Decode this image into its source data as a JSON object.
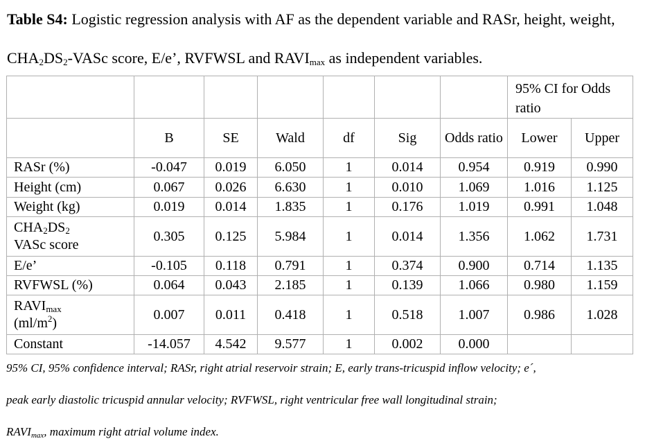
{
  "caption": {
    "lead": "Table S4:",
    "text_1": "Logistic regression analysis with AF as the dependent variable and RASr, height, weight, CHA",
    "sub_a": "2",
    "text_2": "DS",
    "sub_b": "2",
    "text_3": "-VASc score, E/e’, RVFWSL and RAVI",
    "sub_c": "max",
    "text_4": " as independent variables."
  },
  "table": {
    "ci_header": "95% CI for Odds ratio",
    "columns": [
      "B",
      "SE",
      "Wald",
      "df",
      "Sig",
      "Odds ratio",
      "Lower",
      "Upper"
    ],
    "rows": [
      {
        "label": "RASr (%)",
        "values": [
          "-0.047",
          "0.019",
          "6.050",
          "1",
          "0.014",
          "0.954",
          "0.919",
          "0.990"
        ]
      },
      {
        "label": "Height (cm)",
        "values": [
          "0.067",
          "0.026",
          "6.630",
          "1",
          "0.010",
          "1.069",
          "1.016",
          "1.125"
        ]
      },
      {
        "label": "Weight (kg)",
        "values": [
          "0.019",
          "0.014",
          "1.835",
          "1",
          "0.176",
          "1.019",
          "0.991",
          "1.048"
        ]
      },
      {
        "label_parts": {
          "a": "CHA",
          "s1": "2",
          "b": "DS",
          "s2": "2",
          "c": "VASc score"
        },
        "values": [
          "0.305",
          "0.125",
          "5.984",
          "1",
          "0.014",
          "1.356",
          "1.062",
          "1.731"
        ]
      },
      {
        "label": "E/e’",
        "values": [
          "-0.105",
          "0.118",
          "0.791",
          "1",
          "0.374",
          "0.900",
          "0.714",
          "1.135"
        ]
      },
      {
        "label": "RVFWSL (%)",
        "values": [
          "0.064",
          "0.043",
          "2.185",
          "1",
          "0.139",
          "1.066",
          "0.980",
          "1.159"
        ]
      },
      {
        "label_parts": {
          "a": "RAVI",
          "s1": "max",
          "b": "(ml/m",
          "sup": "2",
          "c": ")"
        },
        "values": [
          "0.007",
          "0.011",
          "0.418",
          "1",
          "0.518",
          "1.007",
          "0.986",
          "1.028"
        ]
      },
      {
        "label": "Constant",
        "values": [
          "-14.057",
          "4.542",
          "9.577",
          "1",
          "0.002",
          "0.000",
          "",
          ""
        ]
      }
    ]
  },
  "notes": {
    "line_1": "95% CI, 95% confidence interval; RASr, right atrial reservoir strain; E, early trans-tricuspid inflow velocity; e´,",
    "line_2": "peak early diastolic tricuspid annular velocity; RVFWSL, right ventricular free wall longitudinal strain;",
    "line_3a": "RAVI",
    "line_3_sub": "max",
    "line_3b": ", maximum right atrial volume index."
  }
}
